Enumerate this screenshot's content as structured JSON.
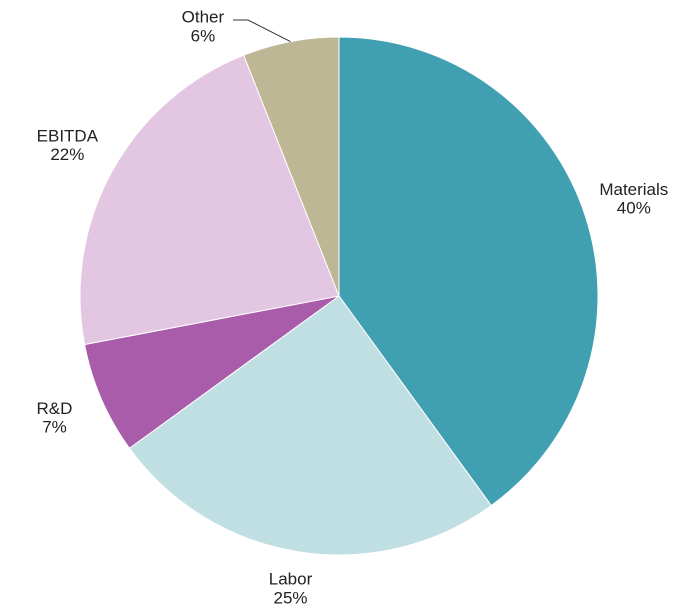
{
  "chart_data": {
    "type": "pie",
    "categories": [
      "Materials",
      "Labor",
      "R&D",
      "EBITDA",
      "Other"
    ],
    "values": [
      40,
      25,
      7,
      22,
      6
    ],
    "value_labels": [
      "40%",
      "25%",
      "7%",
      "22%",
      "6%"
    ],
    "colors": [
      "#409fb0",
      "#c0dfe3",
      "#a95ca9",
      "#e2c6e2",
      "#bdb795"
    ]
  }
}
